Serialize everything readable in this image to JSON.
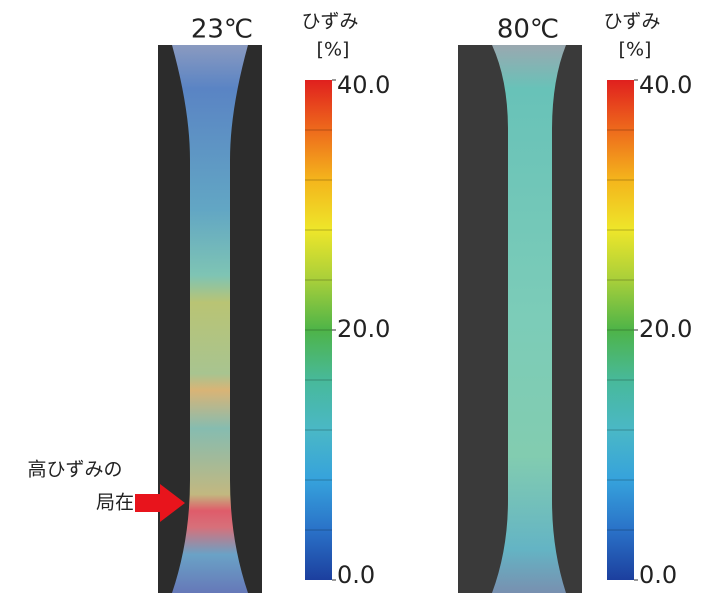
{
  "panels": [
    {
      "title": "23℃",
      "colorbar": {
        "label": [
          "ひずみ",
          "[%]"
        ],
        "ticks": [
          {
            "value": 40,
            "label": "40.0"
          },
          {
            "value": 20,
            "label": "20.0"
          },
          {
            "value": 0,
            "label": "0.0"
          }
        ]
      }
    },
    {
      "title": "80℃",
      "colorbar": {
        "label": [
          "ひずみ",
          "[%]"
        ],
        "ticks": [
          {
            "value": 40,
            "label": "40.0"
          },
          {
            "value": 20,
            "label": "20.0"
          },
          {
            "value": 0,
            "label": "0.0"
          }
        ]
      }
    }
  ],
  "annotation": [
    "高ひずみの",
    "局在"
  ]
}
